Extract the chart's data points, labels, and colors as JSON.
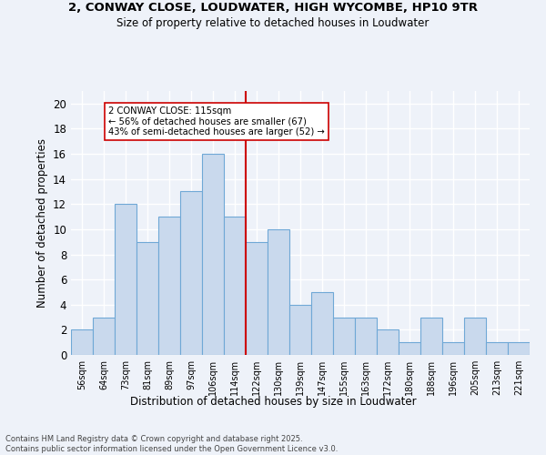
{
  "title_line1": "2, CONWAY CLOSE, LOUDWATER, HIGH WYCOMBE, HP10 9TR",
  "title_line2": "Size of property relative to detached houses in Loudwater",
  "xlabel": "Distribution of detached houses by size in Loudwater",
  "ylabel": "Number of detached properties",
  "bin_labels": [
    "56sqm",
    "64sqm",
    "73sqm",
    "81sqm",
    "89sqm",
    "97sqm",
    "106sqm",
    "114sqm",
    "122sqm",
    "130sqm",
    "139sqm",
    "147sqm",
    "155sqm",
    "163sqm",
    "172sqm",
    "180sqm",
    "188sqm",
    "196sqm",
    "205sqm",
    "213sqm",
    "221sqm"
  ],
  "bar_values": [
    2,
    3,
    12,
    9,
    11,
    13,
    16,
    11,
    9,
    10,
    4,
    5,
    3,
    3,
    2,
    1,
    3,
    1,
    3,
    1,
    1
  ],
  "bar_color": "#c9d9ed",
  "bar_edge_color": "#6fa8d6",
  "marker_bin_index": 7,
  "marker_line_color": "#cc0000",
  "annotation_text": "2 CONWAY CLOSE: 115sqm\n← 56% of detached houses are smaller (67)\n43% of semi-detached houses are larger (52) →",
  "annotation_box_color": "#ffffff",
  "annotation_box_edge_color": "#cc0000",
  "ylim": [
    0,
    21
  ],
  "yticks": [
    0,
    2,
    4,
    6,
    8,
    10,
    12,
    14,
    16,
    18,
    20
  ],
  "footer_text": "Contains HM Land Registry data © Crown copyright and database right 2025.\nContains public sector information licensed under the Open Government Licence v3.0.",
  "bg_color": "#eef2f9",
  "grid_color": "#ffffff"
}
